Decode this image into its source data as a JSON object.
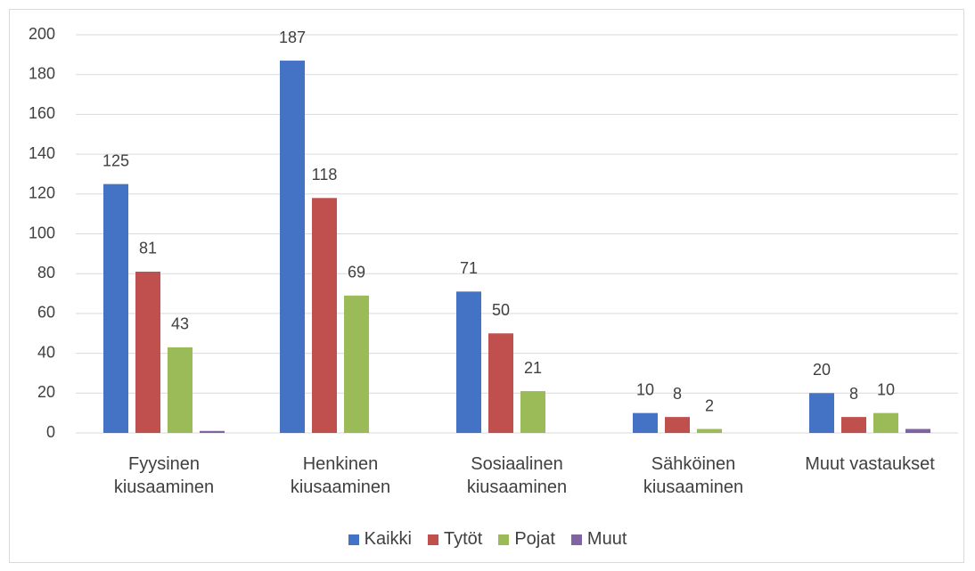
{
  "chart_data": {
    "type": "bar",
    "categories": [
      "Fyysinen kiusaaminen",
      "Henkinen kiusaaminen",
      "Sosiaalinen kiusaaminen",
      "Sähköinen kiusaaminen",
      "Muut vastaukset"
    ],
    "series": [
      {
        "name": "Kaikki",
        "color": "#4472c4",
        "values": [
          125,
          187,
          71,
          10,
          20
        ],
        "labels": true
      },
      {
        "name": "Tytöt",
        "color": "#c0504d",
        "values": [
          81,
          118,
          50,
          8,
          8
        ],
        "labels": true
      },
      {
        "name": "Pojat",
        "color": "#9bbb59",
        "values": [
          43,
          69,
          21,
          2,
          10
        ],
        "labels": true
      },
      {
        "name": "Muut",
        "color": "#8064a2",
        "values": [
          1,
          0,
          0,
          0,
          2
        ],
        "labels": false
      }
    ],
    "ylim": [
      0,
      200
    ],
    "yticks": [
      0,
      20,
      40,
      60,
      80,
      100,
      120,
      140,
      160,
      180,
      200
    ],
    "grid": true,
    "legend": "bottom"
  }
}
